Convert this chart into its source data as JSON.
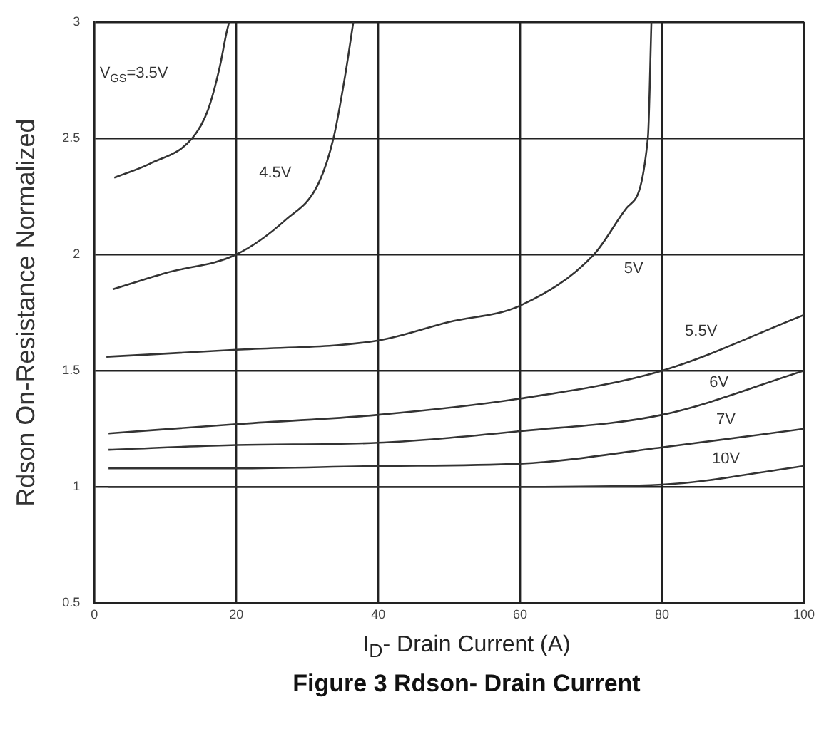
{
  "chart_data": {
    "type": "line",
    "title": "Figure 3 Rdson- Drain Current",
    "xlabel": "I$_{D}$- Drain Current (A)",
    "ylabel": "Rdson On-Resistance Normalized",
    "xlim": [
      0,
      100
    ],
    "xticks": [
      0,
      20,
      40,
      60,
      80,
      100
    ],
    "ylim": [
      0.5,
      3
    ],
    "yticks": [
      0.5,
      1,
      1.5,
      2,
      2.5,
      3
    ],
    "grid": true,
    "legend": false,
    "marker": "none",
    "line_style": "solid",
    "series": [
      {
        "name": "V$_{GS}$=3.5V",
        "color": "#333333",
        "x": [
          2.8,
          7.8,
          13.8,
          16,
          17.7,
          18.6,
          19
        ],
        "values": [
          2.33,
          2.39,
          2.5,
          2.62,
          2.81,
          2.95,
          3
        ]
      },
      {
        "name": "4.5V",
        "color": "#333333",
        "x": [
          2.6,
          10,
          20,
          27,
          31.5,
          33.7,
          35.4,
          36.5
        ],
        "values": [
          1.85,
          1.92,
          2,
          2.15,
          2.3,
          2.5,
          2.78,
          3
        ]
      },
      {
        "name": "5V",
        "color": "#333333",
        "x": [
          1.7,
          20,
          40,
          50,
          60,
          70.4,
          75,
          78,
          78.5
        ],
        "values": [
          1.56,
          1.59,
          1.63,
          1.71,
          1.78,
          2,
          2.2,
          2.5,
          3
        ]
      },
      {
        "name": "5.5V",
        "color": "#333333",
        "x": [
          2,
          20,
          40,
          60,
          80,
          100
        ],
        "values": [
          1.23,
          1.27,
          1.31,
          1.38,
          1.5,
          1.74
        ]
      },
      {
        "name": "6V",
        "color": "#333333",
        "x": [
          2,
          20,
          40,
          60,
          80,
          100
        ],
        "values": [
          1.16,
          1.18,
          1.19,
          1.24,
          1.31,
          1.5
        ]
      },
      {
        "name": "7V",
        "color": "#333333",
        "x": [
          2,
          20,
          40,
          60,
          80,
          100
        ],
        "values": [
          1.08,
          1.08,
          1.09,
          1.1,
          1.17,
          1.25
        ]
      },
      {
        "name": "10V",
        "color": "#333333",
        "x": [
          2,
          20,
          40,
          60,
          80,
          100
        ],
        "values": [
          1,
          1,
          1,
          1,
          1.01,
          1.09
        ]
      }
    ]
  }
}
